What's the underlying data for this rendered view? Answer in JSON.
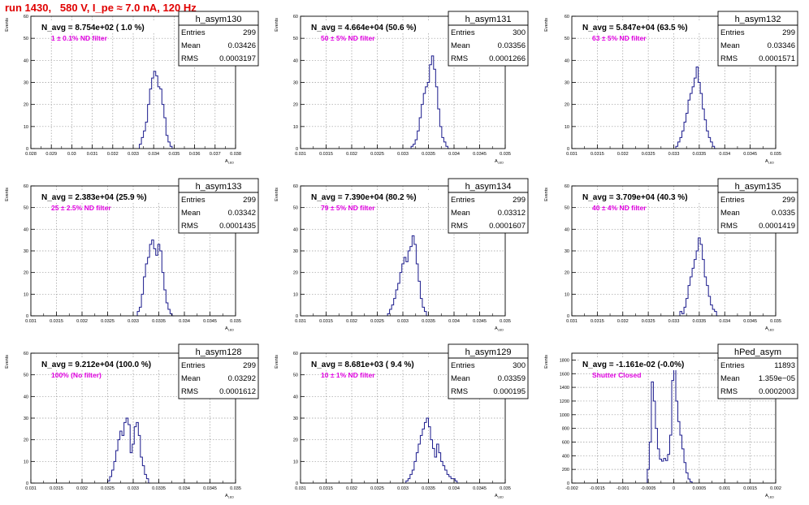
{
  "run_title": "run 1430,   580 V, I_pe ≈ 7.0 nA, 120 Hz",
  "colors": {
    "histogram": "#1a1a8c",
    "filter_label": "#e000e0",
    "run_title": "#e00000",
    "grid": "#9a9a9a"
  },
  "chart_data": [
    {
      "type": "histogram",
      "name": "h_asym130",
      "title": "N_avg = 8.754e+02 ( 1.0 %)",
      "annotation": "1 ± 0.1% ND filter",
      "stats": [
        [
          "Entries",
          "299"
        ],
        [
          "Mean",
          "0.03426"
        ],
        [
          "RMS",
          "0.0003197"
        ]
      ],
      "xlabel": "A_LED",
      "ylabel": "Events",
      "xlim": [
        0.028,
        0.038
      ],
      "ylim": [
        0,
        60
      ],
      "xticks": [
        0.028,
        0.029,
        0.03,
        0.031,
        0.032,
        0.033,
        0.034,
        0.035,
        0.036,
        0.037,
        0.038
      ],
      "xticklabels": [
        "0.028",
        "0.029",
        "0.03",
        "0.031",
        "0.032",
        "0.033",
        "0.034",
        "0.035",
        "0.036",
        "0.037",
        "0.038"
      ],
      "yticks": [
        0,
        10,
        20,
        30,
        40,
        50,
        60
      ],
      "bin_width": 0.0001,
      "bin_edges": [
        0.0333,
        0.0334,
        0.0335,
        0.0336,
        0.0337,
        0.0338,
        0.0339,
        0.034,
        0.0341,
        0.0342,
        0.0343,
        0.0344,
        0.0345,
        0.0346,
        0.0347,
        0.0348,
        0.0349,
        0.035
      ],
      "counts": [
        2,
        5,
        8,
        12,
        20,
        27,
        32,
        35,
        33,
        28,
        27,
        20,
        14,
        6,
        3,
        1,
        0
      ]
    },
    {
      "type": "histogram",
      "name": "h_asym131",
      "title": "N_avg = 4.664e+04 (50.6 %)",
      "annotation": "50 ± 5% ND filter",
      "stats": [
        [
          "Entries",
          "300"
        ],
        [
          "Mean",
          "0.03356"
        ],
        [
          "RMS",
          "0.0001266"
        ]
      ],
      "xlabel": "A_LED",
      "ylabel": "Events",
      "xlim": [
        0.031,
        0.035
      ],
      "ylim": [
        0,
        60
      ],
      "xticks": [
        0.031,
        0.0315,
        0.032,
        0.0325,
        0.033,
        0.0335,
        0.034,
        0.0345,
        0.035
      ],
      "xticklabels": [
        "0.031",
        "0.0315",
        "0.032",
        "0.0325",
        "0.033",
        "0.0335",
        "0.034",
        "0.0345",
        "0.035"
      ],
      "yticks": [
        0,
        10,
        20,
        30,
        40,
        50,
        60
      ],
      "bin_width": 4e-05,
      "bin_edges": [
        0.03316,
        0.0332,
        0.03324,
        0.03328,
        0.03332,
        0.03336,
        0.0334,
        0.03344,
        0.03348,
        0.03352,
        0.03356,
        0.0336,
        0.03364,
        0.03368,
        0.03372,
        0.03376,
        0.0338,
        0.03384,
        0.03388,
        0.03392
      ],
      "counts": [
        1,
        2,
        4,
        8,
        14,
        20,
        25,
        28,
        30,
        38,
        42,
        36,
        28,
        18,
        10,
        5,
        3,
        1,
        0
      ]
    },
    {
      "type": "histogram",
      "name": "h_asym132",
      "title": "N_avg = 5.847e+04 (63.5 %)",
      "annotation": "63 ± 5% ND filter",
      "stats": [
        [
          "Entries",
          "299"
        ],
        [
          "Mean",
          "0.03346"
        ],
        [
          "RMS",
          "0.0001571"
        ]
      ],
      "xlabel": "A_LED",
      "ylabel": "Events",
      "xlim": [
        0.031,
        0.035
      ],
      "ylim": [
        0,
        60
      ],
      "xticks": [
        0.031,
        0.0315,
        0.032,
        0.0325,
        0.033,
        0.0335,
        0.034,
        0.0345,
        0.035
      ],
      "xticklabels": [
        "0.031",
        "0.0315",
        "0.032",
        "0.0325",
        "0.033",
        "0.0335",
        "0.034",
        "0.0345",
        "0.035"
      ],
      "yticks": [
        0,
        10,
        20,
        30,
        40,
        50,
        60
      ],
      "bin_width": 4e-05,
      "bin_edges": [
        0.03304,
        0.03308,
        0.03312,
        0.03316,
        0.0332,
        0.03324,
        0.03328,
        0.03332,
        0.03336,
        0.0334,
        0.03344,
        0.03348,
        0.03352,
        0.03356,
        0.0336,
        0.03364,
        0.03368,
        0.03372,
        0.03376,
        0.0338,
        0.03384
      ],
      "counts": [
        1,
        3,
        5,
        8,
        12,
        16,
        22,
        25,
        28,
        32,
        37,
        30,
        25,
        18,
        13,
        8,
        5,
        3,
        1,
        0
      ]
    },
    {
      "type": "histogram",
      "name": "h_asym133",
      "title": "N_avg = 2.383e+04 (25.9 %)",
      "annotation": "25 ± 2.5% ND filter",
      "stats": [
        [
          "Entries",
          "299"
        ],
        [
          "Mean",
          "0.03342"
        ],
        [
          "RMS",
          "0.0001435"
        ]
      ],
      "xlabel": "A_LED",
      "ylabel": "Events",
      "xlim": [
        0.031,
        0.035
      ],
      "ylim": [
        0,
        60
      ],
      "xticks": [
        0.031,
        0.0315,
        0.032,
        0.0325,
        0.033,
        0.0335,
        0.034,
        0.0345,
        0.035
      ],
      "xticklabels": [
        "0.031",
        "0.0315",
        "0.032",
        "0.0325",
        "0.033",
        "0.0335",
        "0.034",
        "0.0345",
        "0.035"
      ],
      "yticks": [
        0,
        10,
        20,
        30,
        40,
        50,
        60
      ],
      "bin_width": 4e-05,
      "bin_edges": [
        0.03308,
        0.03312,
        0.03316,
        0.0332,
        0.03324,
        0.03328,
        0.03332,
        0.03336,
        0.0334,
        0.03344,
        0.03348,
        0.03352,
        0.03356,
        0.0336,
        0.03364,
        0.03368,
        0.03372,
        0.03376,
        0.0338
      ],
      "counts": [
        2,
        4,
        10,
        18,
        24,
        27,
        33,
        35,
        31,
        28,
        33,
        30,
        20,
        12,
        6,
        3,
        1,
        0
      ]
    },
    {
      "type": "histogram",
      "name": "h_asym134",
      "title": "N_avg = 7.390e+04 (80.2 %)",
      "annotation": "79 ± 5% ND filter",
      "stats": [
        [
          "Entries",
          "299"
        ],
        [
          "Mean",
          "0.03312"
        ],
        [
          "RMS",
          "0.0001607"
        ]
      ],
      "xlabel": "A_LED",
      "ylabel": "Events",
      "xlim": [
        0.031,
        0.035
      ],
      "ylim": [
        0,
        60
      ],
      "xticks": [
        0.031,
        0.0315,
        0.032,
        0.0325,
        0.033,
        0.0335,
        0.034,
        0.0345,
        0.035
      ],
      "xticklabels": [
        "0.031",
        "0.0315",
        "0.032",
        "0.0325",
        "0.033",
        "0.0335",
        "0.034",
        "0.0345",
        "0.035"
      ],
      "yticks": [
        0,
        10,
        20,
        30,
        40,
        50,
        60
      ],
      "bin_width": 4e-05,
      "bin_edges": [
        0.0327,
        0.03274,
        0.03278,
        0.03282,
        0.03286,
        0.0329,
        0.03294,
        0.03298,
        0.03302,
        0.03306,
        0.0331,
        0.03314,
        0.03318,
        0.03322,
        0.03326,
        0.0333,
        0.03334,
        0.03338,
        0.03342,
        0.03346,
        0.0335
      ],
      "counts": [
        1,
        3,
        5,
        8,
        12,
        15,
        20,
        24,
        27,
        25,
        30,
        32,
        37,
        33,
        24,
        16,
        8,
        4,
        2,
        0
      ]
    },
    {
      "type": "histogram",
      "name": "h_asym135",
      "title": "N_avg = 3.709e+04 (40.3 %)",
      "annotation": "40 ± 4% ND filter",
      "stats": [
        [
          "Entries",
          "299"
        ],
        [
          "Mean",
          "0.0335"
        ],
        [
          "RMS",
          "0.0001419"
        ]
      ],
      "xlabel": "A_LED",
      "ylabel": "Events",
      "xlim": [
        0.031,
        0.035
      ],
      "ylim": [
        0,
        60
      ],
      "xticks": [
        0.031,
        0.0315,
        0.032,
        0.0325,
        0.033,
        0.0335,
        0.034,
        0.0345,
        0.035
      ],
      "xticklabels": [
        "0.031",
        "0.0315",
        "0.032",
        "0.0325",
        "0.033",
        "0.0335",
        "0.034",
        "0.0345",
        "0.035"
      ],
      "yticks": [
        0,
        10,
        20,
        30,
        40,
        50,
        60
      ],
      "bin_width": 4e-05,
      "bin_edges": [
        0.03312,
        0.03316,
        0.0332,
        0.03324,
        0.03328,
        0.03332,
        0.03336,
        0.0334,
        0.03344,
        0.03348,
        0.03352,
        0.03356,
        0.0336,
        0.03364,
        0.03368,
        0.03372,
        0.03376,
        0.0338,
        0.03384,
        0.03388
      ],
      "counts": [
        2,
        1,
        4,
        8,
        14,
        18,
        22,
        26,
        30,
        36,
        33,
        26,
        18,
        14,
        9,
        5,
        3,
        2,
        0
      ]
    },
    {
      "type": "histogram",
      "name": "h_asym128",
      "title": "N_avg = 9.212e+04 (100.0 %)",
      "annotation": "100% (No filter)",
      "stats": [
        [
          "Entries",
          "299"
        ],
        [
          "Mean",
          "0.03292"
        ],
        [
          "RMS",
          "0.0001612"
        ]
      ],
      "xlabel": "A_LED",
      "ylabel": "Events",
      "xlim": [
        0.031,
        0.035
      ],
      "ylim": [
        0,
        60
      ],
      "xticks": [
        0.031,
        0.0315,
        0.032,
        0.0325,
        0.033,
        0.0335,
        0.034,
        0.0345,
        0.035
      ],
      "xticklabels": [
        "0.031",
        "0.0315",
        "0.032",
        "0.0325",
        "0.033",
        "0.0335",
        "0.034",
        "0.0345",
        "0.035"
      ],
      "yticks": [
        0,
        10,
        20,
        30,
        40,
        50,
        60
      ],
      "bin_width": 4e-05,
      "bin_edges": [
        0.0325,
        0.03254,
        0.03258,
        0.03262,
        0.03266,
        0.0327,
        0.03274,
        0.03278,
        0.03282,
        0.03286,
        0.0329,
        0.03294,
        0.03298,
        0.03302,
        0.03306,
        0.0331,
        0.03314,
        0.03318,
        0.03322,
        0.03326,
        0.0333,
        0.03334
      ],
      "counts": [
        1,
        3,
        6,
        10,
        15,
        20,
        24,
        22,
        28,
        30,
        27,
        14,
        18,
        26,
        28,
        22,
        12,
        8,
        4,
        2,
        0
      ]
    },
    {
      "type": "histogram",
      "name": "h_asym129",
      "title": "N_avg = 8.681e+03 ( 9.4 %)",
      "annotation": "10 ± 1% ND filter",
      "stats": [
        [
          "Entries",
          "300"
        ],
        [
          "Mean",
          "0.03359"
        ],
        [
          "RMS",
          "0.000195"
        ]
      ],
      "xlabel": "A_LED",
      "ylabel": "Events",
      "xlim": [
        0.031,
        0.035
      ],
      "ylim": [
        0,
        60
      ],
      "xticks": [
        0.031,
        0.0315,
        0.032,
        0.0325,
        0.033,
        0.0335,
        0.034,
        0.0345,
        0.035
      ],
      "xticklabels": [
        "0.031",
        "0.0315",
        "0.032",
        "0.0325",
        "0.033",
        "0.0335",
        "0.034",
        "0.0345",
        "0.035"
      ],
      "yticks": [
        0,
        10,
        20,
        30,
        40,
        50,
        60
      ],
      "bin_width": 4e-05,
      "bin_edges": [
        0.03306,
        0.0331,
        0.03314,
        0.03318,
        0.03322,
        0.03326,
        0.0333,
        0.03334,
        0.03338,
        0.03342,
        0.03346,
        0.0335,
        0.03354,
        0.03358,
        0.03362,
        0.03366,
        0.0337,
        0.03374,
        0.03378,
        0.03382,
        0.03386,
        0.0339,
        0.03394,
        0.03398,
        0.03402,
        0.03406,
        0.0341
      ],
      "counts": [
        1,
        2,
        4,
        6,
        10,
        14,
        18,
        22,
        25,
        28,
        30,
        26,
        20,
        16,
        12,
        18,
        14,
        10,
        8,
        6,
        4,
        3,
        2,
        2,
        1,
        0
      ]
    },
    {
      "type": "histogram",
      "name": "hPed_asym",
      "title": "N_avg = -1.161e-02 (-0.0%)",
      "annotation": "Shutter Closed",
      "stats": [
        [
          "Entries",
          "11893"
        ],
        [
          "Mean",
          "1.359e−05"
        ],
        [
          "RMS",
          "0.0002003"
        ]
      ],
      "xlabel": "A_LED",
      "ylabel": "Events",
      "xlim": [
        -0.002,
        0.002
      ],
      "ylim": [
        0,
        1900
      ],
      "xticks": [
        -0.002,
        -0.0015,
        -0.001,
        -0.0005,
        0,
        0.0005,
        0.001,
        0.0015,
        0.002
      ],
      "xticklabels": [
        "-0.002",
        "-0.0015",
        "-0.001",
        "-0.0005",
        "0",
        "0.0005",
        "0.001",
        "0.0015",
        "0.002"
      ],
      "yticks": [
        0,
        200,
        400,
        600,
        800,
        1000,
        1200,
        1400,
        1600,
        1800
      ],
      "bin_width": 4e-05,
      "bin_edges": [
        -0.00052,
        -0.00048,
        -0.00044,
        -0.0004,
        -0.00036,
        -0.00032,
        -0.00028,
        -0.00024,
        -0.0002,
        -0.00016,
        -0.00012,
        -8e-05,
        -4e-05,
        0,
        4e-05,
        8e-05,
        0.00012,
        0.00016,
        0.0002,
        0.00024,
        0.00028,
        0.00032,
        0.00036
      ],
      "counts": [
        200,
        600,
        1480,
        1200,
        800,
        500,
        350,
        320,
        360,
        330,
        420,
        700,
        1500,
        1780,
        1200,
        900,
        700,
        500,
        300,
        150,
        60,
        20
      ]
    }
  ]
}
